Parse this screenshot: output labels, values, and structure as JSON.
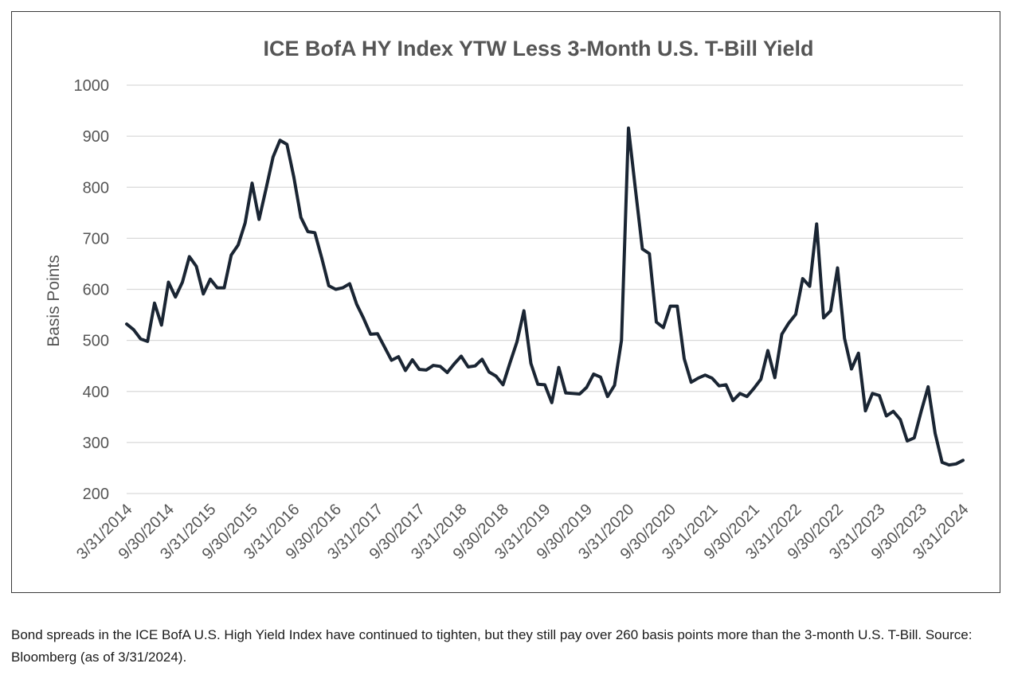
{
  "chart_data": {
    "type": "line",
    "title": "ICE BofA HY Index YTW Less 3-Month U.S. T-Bill Yield",
    "ylabel": "Basis Points",
    "xlabel": "",
    "ylim": [
      200,
      1000
    ],
    "yticks": [
      200,
      300,
      400,
      500,
      600,
      700,
      800,
      900,
      1000
    ],
    "grid": true,
    "x_tick_labels": [
      "3/31/2014",
      "9/30/2014",
      "3/31/2015",
      "9/30/2015",
      "3/31/2016",
      "9/30/2016",
      "3/31/2017",
      "9/30/2017",
      "3/31/2018",
      "9/30/2018",
      "3/31/2019",
      "9/30/2019",
      "3/31/2020",
      "9/30/2020",
      "3/31/2021",
      "9/30/2021",
      "3/31/2022",
      "9/30/2022",
      "3/31/2023",
      "9/30/2023",
      "3/31/2024"
    ],
    "series": [
      {
        "color": "#1a2533",
        "values": [
          532,
          521,
          503,
          498,
          573,
          530,
          614,
          585,
          614,
          664,
          645,
          591,
          620,
          603,
          603,
          667,
          687,
          730,
          808,
          737,
          797,
          859,
          892,
          884,
          819,
          741,
          713,
          711,
          661,
          607,
          600,
          603,
          611,
          571,
          543,
          512,
          513,
          487,
          461,
          468,
          441,
          462,
          443,
          442,
          451,
          449,
          437,
          454,
          469,
          448,
          450,
          463,
          438,
          430,
          413,
          456,
          497,
          558,
          455,
          414,
          413,
          378,
          447,
          397,
          396,
          395,
          408,
          434,
          428,
          390,
          412,
          500,
          916,
          796,
          679,
          670,
          536,
          525,
          567,
          567,
          464,
          418,
          426,
          432,
          426,
          411,
          413,
          382,
          396,
          390,
          406,
          424,
          480,
          427,
          512,
          534,
          551,
          621,
          606,
          728,
          544,
          558,
          642,
          504,
          444,
          475,
          362,
          396,
          392,
          352,
          361,
          345,
          303,
          309,
          361,
          409,
          318,
          261,
          256,
          258,
          265
        ]
      }
    ]
  },
  "caption": "Bond spreads in the ICE BofA U.S. High Yield Index have continued to tighten, but they still pay over 260 basis points more than the 3-month U.S. T-Bill. Source: Bloomberg (as of 3/31/2024)."
}
